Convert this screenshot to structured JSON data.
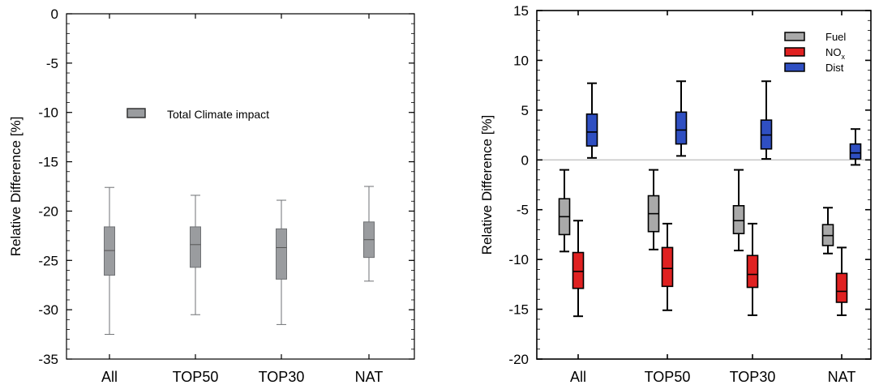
{
  "chart_data": [
    {
      "type": "boxplot",
      "title": "",
      "xlabel": "",
      "ylabel": "Relative Difference [%]",
      "ylim": [
        -35,
        0
      ],
      "yticks": [
        0,
        -5,
        -10,
        -15,
        -20,
        -25,
        -30,
        -35
      ],
      "categories": [
        "All",
        "TOP50",
        "TOP30",
        "NAT"
      ],
      "legend": {
        "placement": "center-upper"
      },
      "series": [
        {
          "name": "Total Climate impact",
          "color": "#9a9c9f",
          "boxes": [
            {
              "min": -32.5,
              "q1": -26.5,
              "median": -24.0,
              "q3": -21.6,
              "max": -17.6
            },
            {
              "min": -30.5,
              "q1": -25.7,
              "median": -23.4,
              "q3": -21.6,
              "max": -18.4
            },
            {
              "min": -31.5,
              "q1": -26.9,
              "median": -23.7,
              "q3": -21.8,
              "max": -18.9
            },
            {
              "min": -27.1,
              "q1": -24.7,
              "median": -22.9,
              "q3": -21.1,
              "max": -17.5
            }
          ]
        }
      ]
    },
    {
      "type": "boxplot",
      "title": "",
      "xlabel": "",
      "ylabel": "Relative Difference [%]",
      "ylim": [
        -20,
        15
      ],
      "yticks": [
        15,
        10,
        5,
        0,
        -5,
        -10,
        -15,
        -20
      ],
      "categories": [
        "All",
        "TOP50",
        "TOP30",
        "NAT"
      ],
      "zero_line": true,
      "legend": {
        "placement": "top-right"
      },
      "series": [
        {
          "name": "Fuel",
          "color": "#a9a9a9",
          "boxes": [
            {
              "min": -9.2,
              "q1": -7.5,
              "median": -5.7,
              "q3": -3.9,
              "max": -1.0
            },
            {
              "min": -9.0,
              "q1": -7.2,
              "median": -5.4,
              "q3": -3.6,
              "max": -1.0
            },
            {
              "min": -9.1,
              "q1": -7.4,
              "median": -6.1,
              "q3": -4.6,
              "max": -1.0
            },
            {
              "min": -9.4,
              "q1": -8.6,
              "median": -7.6,
              "q3": -6.5,
              "max": -4.8
            }
          ]
        },
        {
          "name": "NO",
          "name_sub": "x",
          "color": "#e02121",
          "boxes": [
            {
              "min": -15.7,
              "q1": -12.9,
              "median": -11.2,
              "q3": -9.3,
              "max": -6.1
            },
            {
              "min": -15.1,
              "q1": -12.7,
              "median": -10.9,
              "q3": -8.8,
              "max": -6.4
            },
            {
              "min": -15.6,
              "q1": -12.8,
              "median": -11.5,
              "q3": -9.6,
              "max": -6.4
            },
            {
              "min": -15.6,
              "q1": -14.3,
              "median": -13.2,
              "q3": -11.4,
              "max": -8.8
            }
          ]
        },
        {
          "name": "Dist",
          "color": "#2f4fc2",
          "boxes": [
            {
              "min": 0.2,
              "q1": 1.4,
              "median": 2.8,
              "q3": 4.6,
              "max": 7.7
            },
            {
              "min": 0.4,
              "q1": 1.6,
              "median": 3.0,
              "q3": 4.8,
              "max": 7.9
            },
            {
              "min": 0.1,
              "q1": 1.1,
              "median": 2.5,
              "q3": 4.0,
              "max": 7.9
            },
            {
              "min": -0.5,
              "q1": 0.1,
              "median": 0.7,
              "q3": 1.6,
              "max": 3.1
            }
          ]
        }
      ]
    }
  ]
}
